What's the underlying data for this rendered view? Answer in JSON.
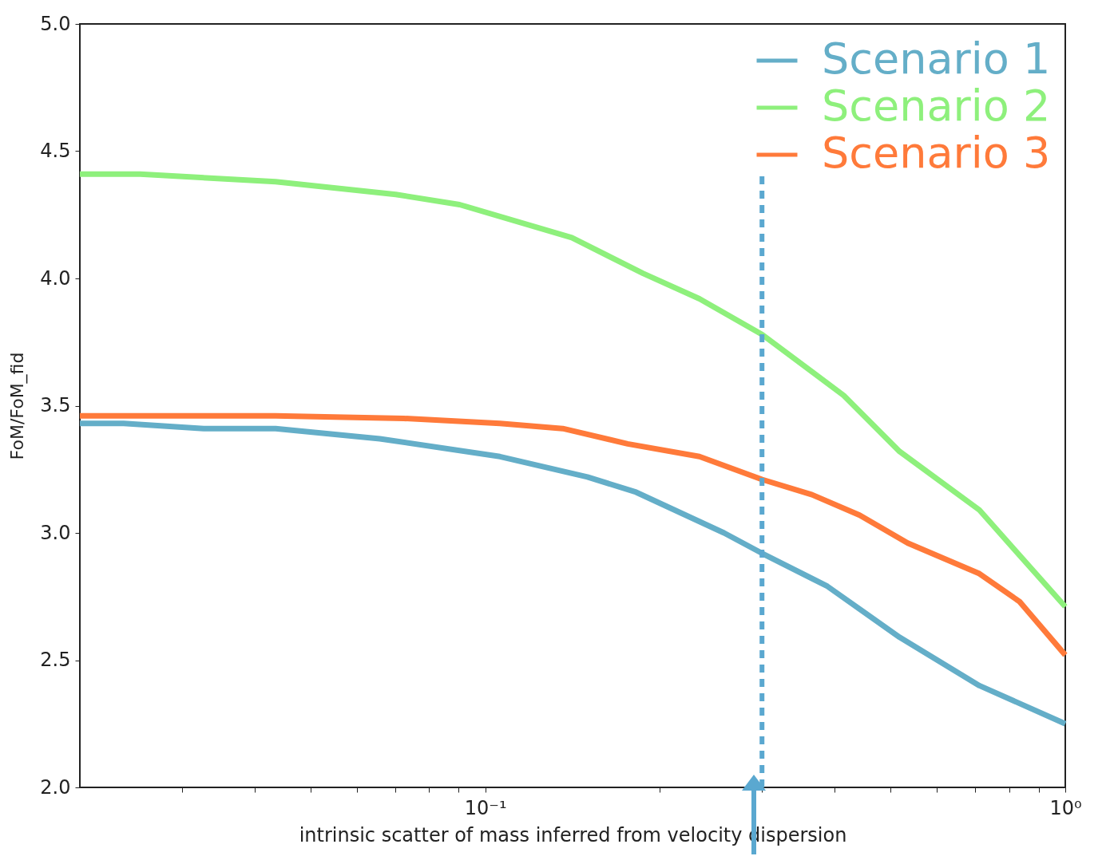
{
  "chart_data": {
    "type": "line",
    "xlabel": "intrinsic scatter of mass inferred from velocity dispersion",
    "ylabel": "FoM/FoM_fid",
    "log": "x",
    "xlim": [
      0.02,
      1
    ],
    "xticks": [
      {
        "value": 0.03,
        "label": null
      },
      {
        "value": 0.04,
        "label": null
      },
      {
        "value": 0.05,
        "label": null
      },
      {
        "value": 0.06,
        "label": null
      },
      {
        "value": 0.07,
        "label": null
      },
      {
        "value": 0.08,
        "label": null
      },
      {
        "value": 0.09,
        "label": null
      },
      {
        "value": 0.1,
        "label": "10⁻¹"
      },
      {
        "value": 0.2,
        "label": null
      },
      {
        "value": 0.3,
        "label": null
      },
      {
        "value": 0.4,
        "label": null
      },
      {
        "value": 0.5,
        "label": null
      },
      {
        "value": 0.6,
        "label": null
      },
      {
        "value": 0.7,
        "label": null
      },
      {
        "value": 0.8,
        "label": null
      },
      {
        "value": 0.9,
        "label": null
      },
      {
        "value": 1,
        "label": "10⁰"
      }
    ],
    "ylim": [
      2,
      5
    ],
    "yticks": [
      {
        "value": 2,
        "label": "2.0"
      },
      {
        "value": 2.5,
        "label": "2.5"
      },
      {
        "value": 3,
        "label": "3.0"
      },
      {
        "value": 3.5,
        "label": "3.5"
      },
      {
        "value": 4,
        "label": "4.0"
      },
      {
        "value": 4.5,
        "label": "4.5"
      },
      {
        "value": 5,
        "label": "5.0"
      }
    ],
    "grid": false,
    "legend": "top right",
    "marker": "none",
    "line_style": "solid",
    "series": [
      {
        "name": "Scenario 1",
        "color": "#64aec8",
        "x": [
          0.02,
          0.0238,
          0.0327,
          0.0435,
          0.0658,
          0.106,
          0.15,
          0.182,
          0.258,
          0.3,
          0.389,
          0.518,
          0.711,
          1
        ],
        "values": [
          3.43,
          3.43,
          3.41,
          3.41,
          3.37,
          3.3,
          3.22,
          3.16,
          3.0,
          2.92,
          2.79,
          2.59,
          2.4,
          2.25
        ]
      },
      {
        "name": "Scenario 2",
        "color": "#8ef07c",
        "x": [
          0.02,
          0.0254,
          0.0435,
          0.0701,
          0.0903,
          0.141,
          0.187,
          0.234,
          0.3,
          0.415,
          0.518,
          0.711,
          1
        ],
        "values": [
          4.41,
          4.41,
          4.38,
          4.33,
          4.29,
          4.16,
          4.02,
          3.92,
          3.78,
          3.54,
          3.32,
          3.09,
          2.71
        ]
      },
      {
        "name": "Scenario 3",
        "color": "#ff7a3a",
        "x": [
          0.02,
          0.0435,
          0.0723,
          0.106,
          0.136,
          0.176,
          0.234,
          0.3,
          0.366,
          0.442,
          0.535,
          0.711,
          0.834,
          1
        ],
        "values": [
          3.46,
          3.46,
          3.45,
          3.43,
          3.41,
          3.35,
          3.3,
          3.21,
          3.15,
          3.07,
          2.96,
          2.84,
          2.73,
          2.52
        ]
      }
    ],
    "ref_lines": [
      {
        "axis": "x",
        "value": 0.3,
        "color": "#5aa8d0",
        "line_style": "dashed"
      }
    ]
  }
}
